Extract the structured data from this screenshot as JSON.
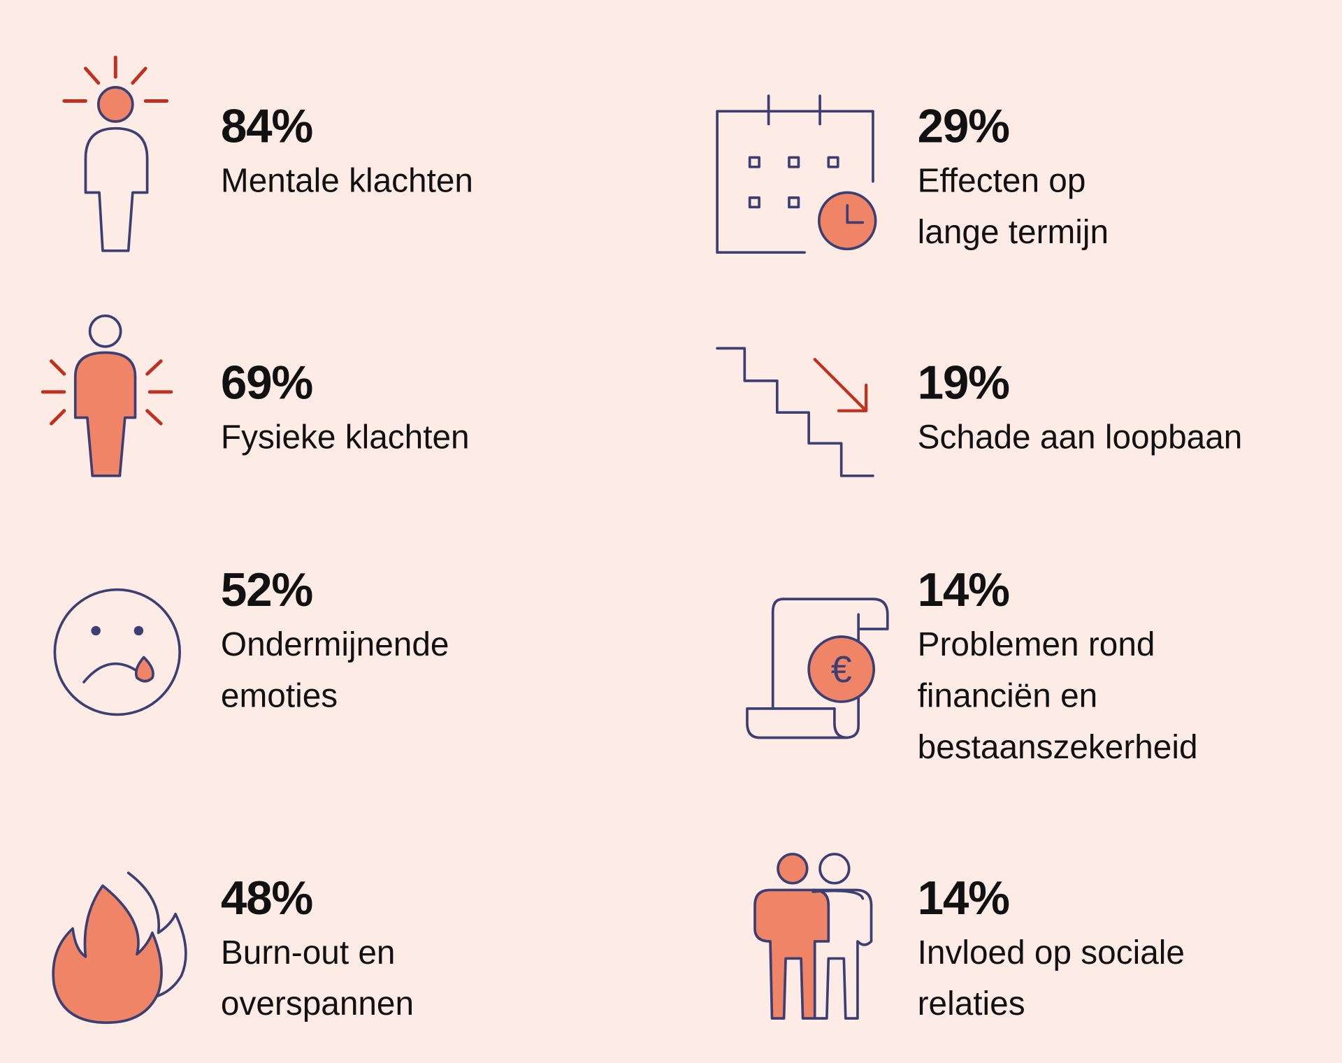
{
  "colors": {
    "background": "#fdebe6",
    "navy": "#3d3f73",
    "orange": "#ef8566",
    "red": "#c0311f"
  },
  "stats": [
    {
      "icon": "head-pain-person-icon",
      "percent": "84%",
      "label": [
        "Mentale klachten"
      ]
    },
    {
      "icon": "physical-pain-person-icon",
      "percent": "69%",
      "label": [
        "Fysieke klachten"
      ]
    },
    {
      "icon": "sad-face-icon",
      "percent": "52%",
      "label": [
        "Ondermijnende",
        "emoties"
      ]
    },
    {
      "icon": "flame-icon",
      "percent": "48%",
      "label": [
        "Burn-out en",
        "overspannen"
      ]
    },
    {
      "icon": "calendar-clock-icon",
      "percent": "29%",
      "label": [
        "Effecten op",
        "lange termijn"
      ]
    },
    {
      "icon": "stairs-down-icon",
      "percent": "19%",
      "label": [
        "Schade aan loopbaan"
      ]
    },
    {
      "icon": "euro-scroll-icon",
      "percent": "14%",
      "label": [
        "Problemen rond",
        "financiën en",
        "bestaanszekerheid"
      ]
    },
    {
      "icon": "two-people-icon",
      "percent": "14%",
      "label": [
        "Invloed op sociale",
        "relaties"
      ]
    }
  ]
}
